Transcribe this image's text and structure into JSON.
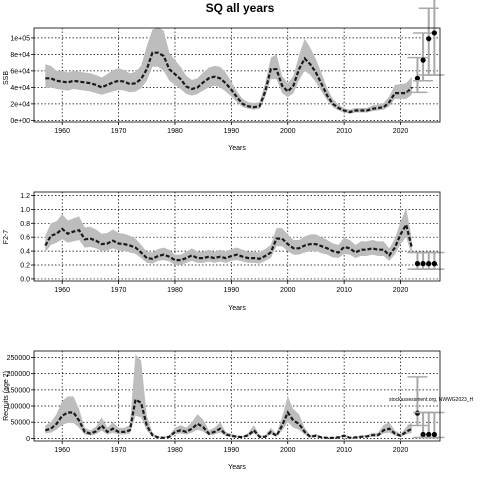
{
  "chart_data": [
    {
      "type": "line",
      "title": "SQ all years",
      "xlabel": "Years",
      "ylabel": "SSB",
      "xlim": [
        1955,
        2027
      ],
      "ylim": [
        -2000,
        112000
      ],
      "xticks": [
        1960,
        1970,
        1980,
        1990,
        2000,
        2010,
        2020
      ],
      "yticks": [
        0,
        20000,
        40000,
        60000,
        80000,
        100000
      ],
      "ytick_labels": [
        "0e+00",
        "2e+04",
        "4e+04",
        "6e+04",
        "8e+04",
        "1e+05"
      ],
      "grid": true,
      "series": [
        {
          "x": [
            1957,
            1958,
            1959,
            1960,
            1961,
            1962,
            1963,
            1964,
            1965,
            1966,
            1967,
            1968,
            1969,
            1970,
            1971,
            1972,
            1973,
            1974,
            1975,
            1976,
            1977,
            1978,
            1979,
            1980,
            1981,
            1982,
            1983,
            1984,
            1985,
            1986,
            1987,
            1988,
            1989,
            1990,
            1991,
            1992,
            1993,
            1994,
            1995,
            1996,
            1997,
            1998,
            1999,
            2000,
            2001,
            2002,
            2003,
            2004,
            2005,
            2006,
            2007,
            2008,
            2009,
            2010,
            2011,
            2012,
            2013,
            2014,
            2015,
            2016,
            2017,
            2018,
            2019,
            2020,
            2021,
            2022
          ],
          "y": [
            51000,
            51000,
            48000,
            47000,
            46000,
            48000,
            47000,
            46000,
            45000,
            43000,
            40000,
            43000,
            46000,
            48000,
            47000,
            44000,
            45000,
            50000,
            62000,
            82000,
            82000,
            78000,
            62000,
            56000,
            50000,
            41000,
            38000,
            40000,
            46000,
            51000,
            53000,
            51000,
            45000,
            37000,
            28000,
            20000,
            17000,
            16000,
            17000,
            35000,
            62000,
            62000,
            42000,
            35000,
            42000,
            62000,
            75000,
            68000,
            58000,
            44000,
            30000,
            20000,
            15000,
            12000,
            10000,
            12000,
            12000,
            12000,
            14000,
            15000,
            16000,
            22000,
            33000,
            33000,
            33000,
            40000
          ],
          "lower": [
            39000,
            40000,
            38000,
            37000,
            36000,
            38000,
            37000,
            36000,
            35000,
            33000,
            31000,
            33000,
            35000,
            37000,
            36000,
            34000,
            35000,
            39000,
            48000,
            65000,
            65000,
            60000,
            48000,
            43000,
            38000,
            32000,
            30000,
            32000,
            36000,
            40000,
            42000,
            40000,
            35000,
            29000,
            22000,
            16000,
            14000,
            13000,
            14000,
            28000,
            50000,
            50000,
            33000,
            28000,
            33000,
            49000,
            60000,
            55000,
            46000,
            35000,
            24000,
            16000,
            12000,
            9500,
            8000,
            9500,
            9500,
            9500,
            11000,
            12000,
            13000,
            17000,
            26000,
            26000,
            26000,
            31000
          ],
          "upper": [
            68000,
            66000,
            60000,
            60000,
            58000,
            60000,
            59000,
            58000,
            57000,
            55000,
            52000,
            56000,
            61000,
            63000,
            61000,
            57000,
            59000,
            66000,
            90000,
            110000,
            113000,
            109000,
            82000,
            73000,
            65000,
            54000,
            49000,
            51000,
            58000,
            64000,
            66000,
            65000,
            58000,
            47000,
            35000,
            26000,
            22000,
            21000,
            22000,
            45000,
            76000,
            80000,
            54000,
            45000,
            54000,
            79000,
            99000,
            88000,
            74000,
            57000,
            39000,
            26000,
            19000,
            15000,
            13000,
            15000,
            15000,
            15000,
            18000,
            19000,
            21000,
            29000,
            43000,
            44000,
            45000,
            53000
          ]
        }
      ],
      "projections": [
        {
          "x": 2023,
          "y": 51000,
          "lower": 34000,
          "upper": 76000
        },
        {
          "x": 2024,
          "y": 73000,
          "lower": 48000,
          "upper": 106000
        },
        {
          "x": 2025,
          "y": 99000,
          "lower": 55000,
          "upper": 136000
        },
        {
          "x": 2026,
          "y": 106000,
          "lower": 55000,
          "upper": 150000
        }
      ]
    },
    {
      "type": "line",
      "xlabel": "Years",
      "ylabel": "F2-7",
      "xlim": [
        1955,
        2027
      ],
      "ylim": [
        -0.03,
        1.25
      ],
      "xticks": [
        1960,
        1970,
        1980,
        1990,
        2000,
        2010,
        2020
      ],
      "yticks": [
        0.0,
        0.2,
        0.4,
        0.6,
        0.8,
        1.0,
        1.2
      ],
      "ytick_labels": [
        "0.0",
        "0.2",
        "0.4",
        "0.6",
        "0.8",
        "1.0",
        "1.2"
      ],
      "grid": true,
      "series": [
        {
          "x": [
            1957,
            1958,
            1959,
            1960,
            1961,
            1962,
            1963,
            1964,
            1965,
            1966,
            1967,
            1968,
            1969,
            1970,
            1971,
            1972,
            1973,
            1974,
            1975,
            1976,
            1977,
            1978,
            1979,
            1980,
            1981,
            1982,
            1983,
            1984,
            1985,
            1986,
            1987,
            1988,
            1989,
            1990,
            1991,
            1992,
            1993,
            1994,
            1995,
            1996,
            1997,
            1998,
            1999,
            2000,
            2001,
            2002,
            2003,
            2004,
            2005,
            2006,
            2007,
            2008,
            2009,
            2010,
            2011,
            2012,
            2013,
            2014,
            2015,
            2016,
            2017,
            2018,
            2019,
            2020,
            2021,
            2022
          ],
          "y": [
            0.48,
            0.62,
            0.65,
            0.72,
            0.65,
            0.68,
            0.7,
            0.57,
            0.58,
            0.55,
            0.5,
            0.51,
            0.55,
            0.51,
            0.5,
            0.48,
            0.45,
            0.38,
            0.3,
            0.29,
            0.33,
            0.35,
            0.32,
            0.27,
            0.27,
            0.3,
            0.34,
            0.3,
            0.3,
            0.32,
            0.3,
            0.32,
            0.3,
            0.33,
            0.35,
            0.32,
            0.3,
            0.3,
            0.29,
            0.33,
            0.38,
            0.58,
            0.58,
            0.5,
            0.44,
            0.44,
            0.48,
            0.5,
            0.5,
            0.47,
            0.44,
            0.4,
            0.38,
            0.46,
            0.44,
            0.38,
            0.42,
            0.42,
            0.44,
            0.42,
            0.42,
            0.34,
            0.45,
            0.64,
            0.78,
            0.45
          ],
          "lower": [
            0.38,
            0.49,
            0.52,
            0.57,
            0.52,
            0.54,
            0.56,
            0.45,
            0.46,
            0.44,
            0.4,
            0.41,
            0.44,
            0.41,
            0.4,
            0.38,
            0.36,
            0.3,
            0.23,
            0.22,
            0.26,
            0.27,
            0.25,
            0.2,
            0.2,
            0.23,
            0.26,
            0.23,
            0.23,
            0.25,
            0.23,
            0.25,
            0.23,
            0.26,
            0.27,
            0.25,
            0.23,
            0.23,
            0.22,
            0.26,
            0.3,
            0.47,
            0.47,
            0.4,
            0.35,
            0.35,
            0.38,
            0.4,
            0.4,
            0.37,
            0.35,
            0.31,
            0.3,
            0.36,
            0.35,
            0.3,
            0.33,
            0.33,
            0.35,
            0.33,
            0.33,
            0.26,
            0.35,
            0.5,
            0.6,
            0.34
          ],
          "upper": [
            0.62,
            0.8,
            0.83,
            0.93,
            0.84,
            0.87,
            0.9,
            0.74,
            0.75,
            0.71,
            0.65,
            0.66,
            0.71,
            0.66,
            0.65,
            0.62,
            0.58,
            0.49,
            0.39,
            0.38,
            0.43,
            0.45,
            0.42,
            0.35,
            0.35,
            0.39,
            0.44,
            0.39,
            0.39,
            0.42,
            0.39,
            0.42,
            0.39,
            0.43,
            0.45,
            0.42,
            0.39,
            0.39,
            0.38,
            0.43,
            0.49,
            0.73,
            0.73,
            0.64,
            0.56,
            0.56,
            0.61,
            0.64,
            0.64,
            0.6,
            0.56,
            0.51,
            0.49,
            0.59,
            0.56,
            0.49,
            0.54,
            0.54,
            0.56,
            0.54,
            0.54,
            0.44,
            0.58,
            0.82,
            1.02,
            0.58
          ]
        }
      ],
      "projections": [
        {
          "x": 2023,
          "y": 0.22,
          "lower": 0.14,
          "upper": 0.38
        },
        {
          "x": 2024,
          "y": 0.22,
          "lower": 0.14,
          "upper": 0.38
        },
        {
          "x": 2025,
          "y": 0.22,
          "lower": 0.14,
          "upper": 0.38
        },
        {
          "x": 2026,
          "y": 0.22,
          "lower": 0.14,
          "upper": 0.38
        }
      ]
    },
    {
      "type": "line",
      "xlabel": "Years",
      "ylabel": "Recruits (age 2)",
      "xlim": [
        1955,
        2027
      ],
      "ylim": [
        -8000,
        270000
      ],
      "xticks": [
        1960,
        1970,
        1980,
        1990,
        2000,
        2010,
        2020
      ],
      "yticks": [
        0,
        50000,
        100000,
        150000,
        200000,
        250000
      ],
      "ytick_labels": [
        "0",
        "50000",
        "100000",
        "150000",
        "200000",
        "250000"
      ],
      "grid": true,
      "annotation": "stockassessment.org, NWWG2023_H",
      "series": [
        {
          "x": [
            1957,
            1958,
            1959,
            1960,
            1961,
            1962,
            1963,
            1964,
            1965,
            1966,
            1967,
            1968,
            1969,
            1970,
            1971,
            1972,
            1973,
            1974,
            1975,
            1976,
            1977,
            1978,
            1979,
            1980,
            1981,
            1982,
            1983,
            1984,
            1985,
            1986,
            1987,
            1988,
            1989,
            1990,
            1991,
            1992,
            1993,
            1994,
            1995,
            1996,
            1997,
            1998,
            1999,
            2000,
            2001,
            2002,
            2003,
            2004,
            2005,
            2006,
            2007,
            2008,
            2009,
            2010,
            2011,
            2012,
            2013,
            2014,
            2015,
            2016,
            2017,
            2018,
            2019,
            2020,
            2021,
            2022
          ],
          "y": [
            25000,
            30000,
            45000,
            70000,
            80000,
            80000,
            55000,
            20000,
            15000,
            22000,
            40000,
            20000,
            30000,
            20000,
            20000,
            25000,
            120000,
            110000,
            40000,
            10000,
            3000,
            2000,
            5000,
            20000,
            25000,
            20000,
            30000,
            45000,
            35000,
            15000,
            20000,
            30000,
            12000,
            8000,
            5000,
            4000,
            10000,
            25000,
            5000,
            5000,
            20000,
            8000,
            40000,
            80000,
            55000,
            45000,
            20000,
            5000,
            8000,
            3000,
            2000,
            1500,
            3000,
            8000,
            2000,
            3000,
            5000,
            6000,
            10000,
            10000,
            25000,
            30000,
            15000,
            8000,
            20000,
            30000
          ],
          "lower": [
            15000,
            18000,
            27000,
            42000,
            48000,
            48000,
            33000,
            12000,
            9000,
            13000,
            24000,
            12000,
            18000,
            12000,
            12000,
            15000,
            70000,
            65000,
            24000,
            6000,
            1800,
            1200,
            3000,
            12000,
            15000,
            12000,
            18000,
            27000,
            21000,
            9000,
            12000,
            18000,
            7000,
            4800,
            3000,
            2400,
            6000,
            15000,
            3000,
            3000,
            12000,
            4800,
            24000,
            50000,
            33000,
            27000,
            12000,
            3000,
            4800,
            1800,
            1200,
            900,
            1800,
            4800,
            1200,
            1800,
            3000,
            3600,
            6000,
            6000,
            15000,
            18000,
            9000,
            4800,
            12000,
            17000
          ],
          "upper": [
            40000,
            50000,
            75000,
            115000,
            130000,
            130000,
            90000,
            33000,
            25000,
            36000,
            65000,
            33000,
            50000,
            33000,
            33000,
            41000,
            260000,
            240000,
            70000,
            18000,
            5000,
            3500,
            9000,
            33000,
            41000,
            33000,
            50000,
            75000,
            58000,
            25000,
            33000,
            50000,
            20000,
            14000,
            9000,
            7000,
            17000,
            41000,
            9000,
            9000,
            33000,
            14000,
            66000,
            130000,
            90000,
            75000,
            33000,
            9000,
            14000,
            5000,
            3500,
            2700,
            5000,
            14000,
            3500,
            5000,
            9000,
            10000,
            17000,
            17000,
            42000,
            50000,
            25000,
            14000,
            35000,
            50000
          ]
        }
      ],
      "projections": [
        {
          "x": 2023,
          "y": 78000,
          "lower": 40000,
          "upper": 190000
        },
        {
          "x": 2024,
          "y": 12000,
          "lower": 3000,
          "upper": 80000
        },
        {
          "x": 2025,
          "y": 12000,
          "lower": 3000,
          "upper": 80000
        },
        {
          "x": 2026,
          "y": 12000,
          "lower": 3000,
          "upper": 80000
        }
      ]
    }
  ]
}
